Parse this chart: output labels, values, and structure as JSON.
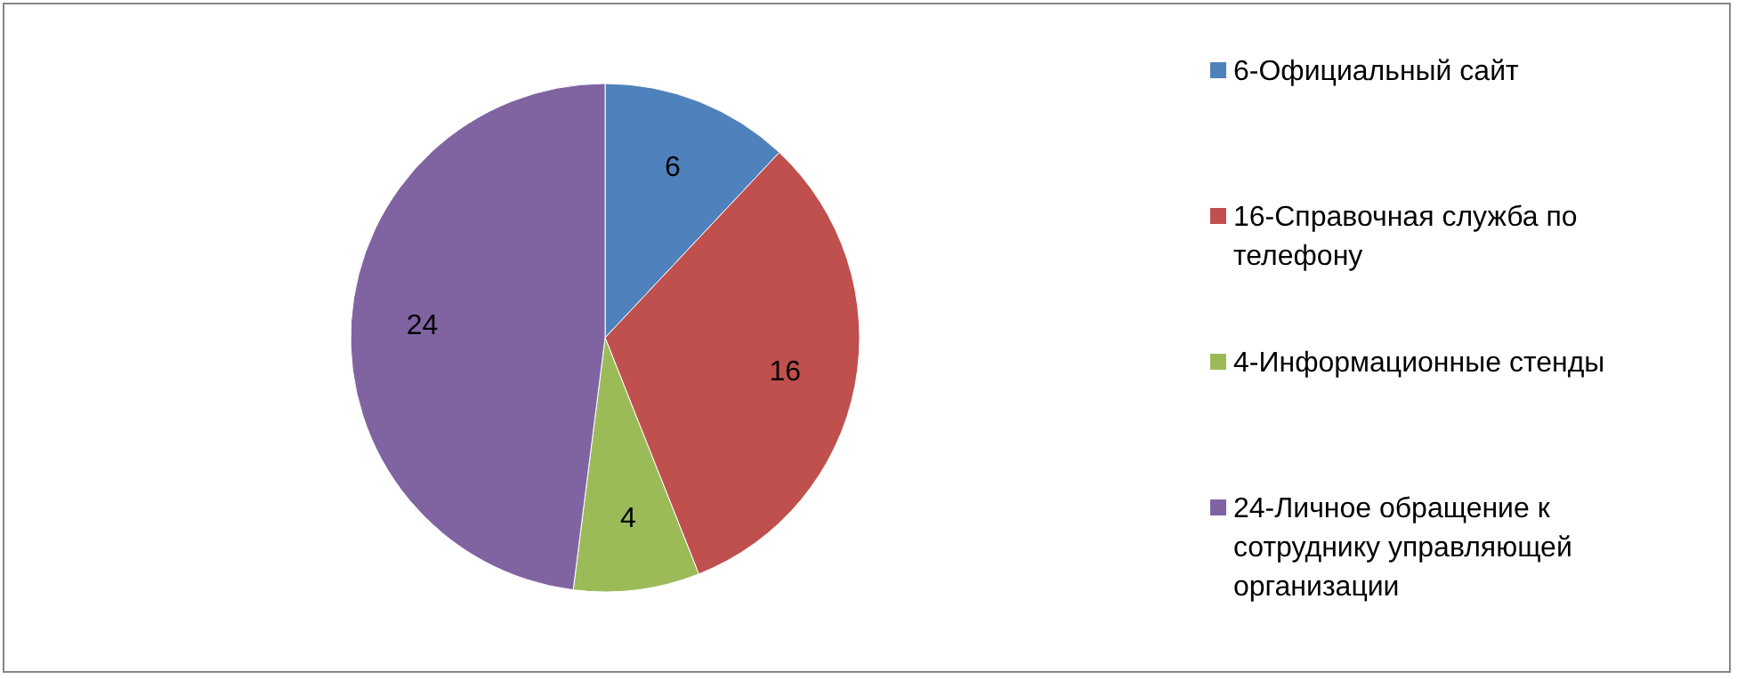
{
  "chart_data": {
    "type": "pie",
    "categories": [
      "6-Официальный сайт",
      "16-Справочная служба по телефону",
      "4-Информационные стенды",
      "24-Личное обращение к сотруднику управляющей организации"
    ],
    "values": [
      6,
      16,
      4,
      24
    ],
    "colors": [
      "#4f81bd",
      "#c0504d",
      "#9bbb59",
      "#8064a2"
    ],
    "data_labels": true,
    "legend": "right"
  }
}
